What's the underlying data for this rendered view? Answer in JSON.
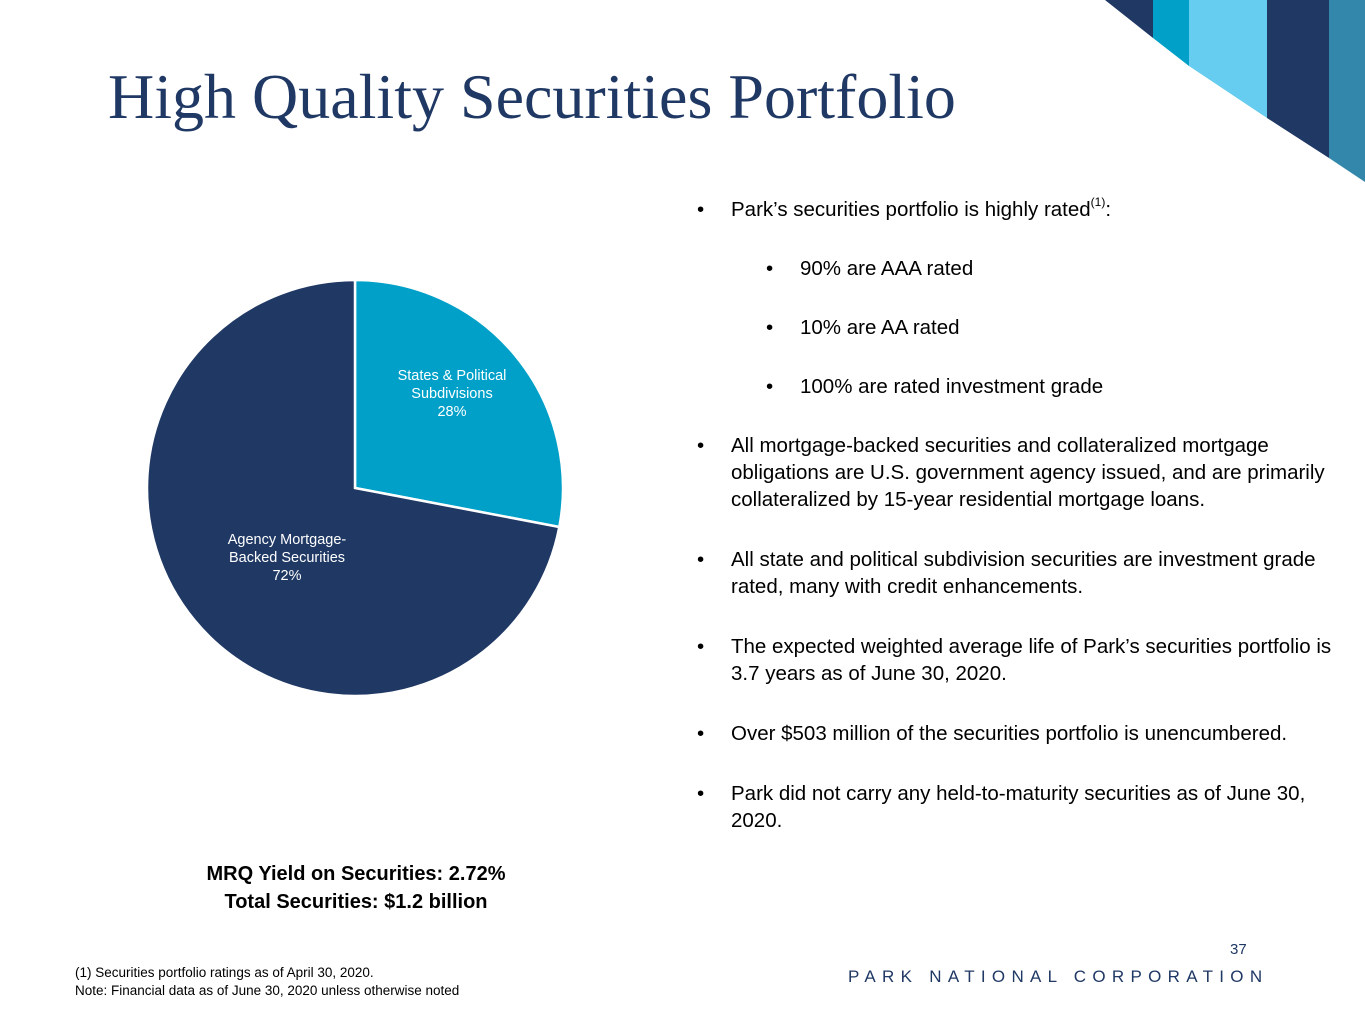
{
  "title": "High Quality Securities Portfolio",
  "colors": {
    "navy": "#1f3864",
    "teal": "#00a0c8",
    "light_blue": "#66ccf0",
    "steel_blue": "#3387aa"
  },
  "chart_data": {
    "type": "pie",
    "series": [
      {
        "name": "States & Political Subdivisions",
        "label_lines": [
          "States & Political",
          "Subdivisions"
        ],
        "value": 28,
        "value_label": "28%",
        "color": "#00a0c8"
      },
      {
        "name": "Agency Mortgage-Backed Securities",
        "label_lines": [
          "Agency Mortgage-",
          "Backed Securities"
        ],
        "value": 72,
        "value_label": "72%",
        "color": "#1f3864"
      }
    ]
  },
  "summary": {
    "yield_line": "MRQ Yield on Securities: 2.72%",
    "total_line": "Total Securities: $1.2 billion"
  },
  "bullets": {
    "rated_intro": "Park’s securities portfolio is highly rated",
    "rated_sup": "(1)",
    "rated_colon": ":",
    "aaa": "90% are AAA rated",
    "aa": "10% are AA rated",
    "investment_grade": "100% are rated investment grade",
    "mbs": "All mortgage-backed securities and collateralized mortgage obligations are U.S. government agency issued, and are primarily collateralized by 15-year residential mortgage loans.",
    "state": "All state and political subdivision securities are investment grade rated, many with credit enhancements.",
    "life": "The expected weighted average life of Park’s securities portfolio is 3.7 years as of June 30, 2020.",
    "unencumbered": "Over $503 million of the securities portfolio is unencumbered.",
    "htm": "Park did not carry any held-to-maturity securities as of June 30, 2020."
  },
  "footer": {
    "page_number": "37",
    "company": "PARK NATIONAL CORPORATION",
    "footnote_1": "(1)   Securities portfolio ratings as of April 30, 2020.",
    "footnote_2": "Note: Financial data as of June 30, 2020 unless otherwise noted"
  }
}
